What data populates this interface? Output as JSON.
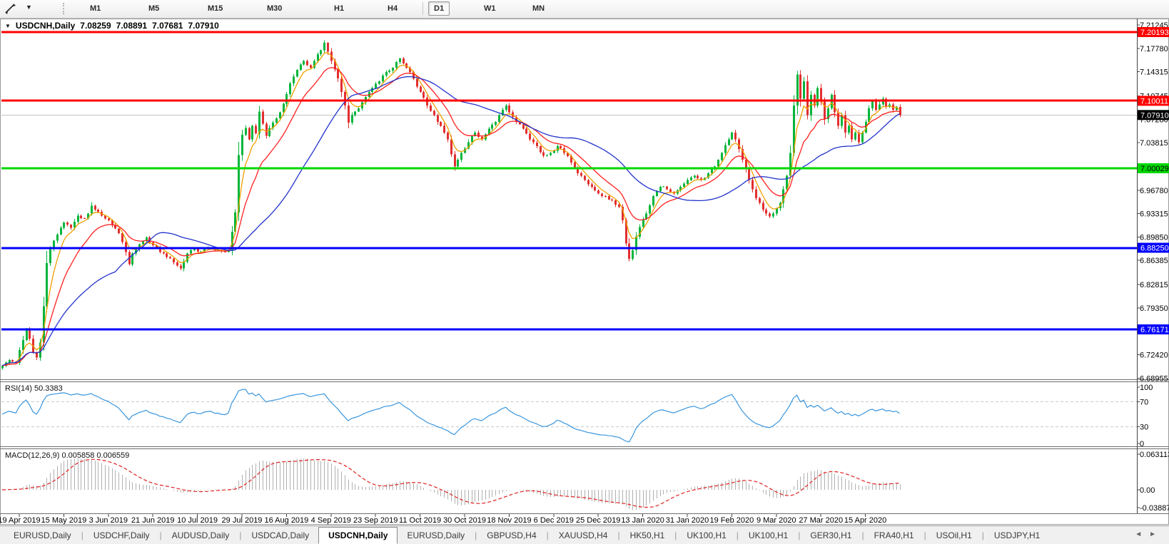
{
  "toolbar": {
    "tool_icon": "cursor-crosshair-icon",
    "dropdown_glyph": "▼",
    "timeframes": [
      "M1",
      "M5",
      "M15",
      "M30",
      "H1",
      "H4",
      "D1",
      "W1",
      "MN"
    ],
    "active_timeframe": "D1"
  },
  "title": {
    "collapse_arrow": "▼",
    "symbol": "USDCNH,Daily",
    "open": "7.08259",
    "high": "7.08891",
    "low": "7.07681",
    "close": "7.07910"
  },
  "price_axis": {
    "ticks": [
      "7.21245",
      "7.17780",
      "7.14315",
      "7.10745",
      "7.07280",
      "7.03815",
      "7.00350",
      "6.96780",
      "6.93315",
      "6.89850",
      "6.86385",
      "6.82815",
      "6.79350",
      "6.75885",
      "6.72420",
      "6.68955"
    ]
  },
  "hlines": [
    {
      "price": 7.20193,
      "label": "7.20193",
      "color": "#ff0000",
      "box_bg": "#ff0000",
      "box_fg": "#ffffff"
    },
    {
      "price": 7.10011,
      "label": "7.10011",
      "color": "#ff0000",
      "box_bg": "#ff0000",
      "box_fg": "#ffffff"
    },
    {
      "price": 7.00029,
      "label": "7.00029",
      "color": "#00d800",
      "box_bg": "#00d800",
      "box_fg": "#000000"
    },
    {
      "price": 6.8825,
      "label": "6.88250",
      "color": "#0000ff",
      "box_bg": "#0000ff",
      "box_fg": "#ffffff"
    },
    {
      "price": 6.76171,
      "label": "6.76171",
      "color": "#0000ff",
      "box_bg": "#0000ff",
      "box_fg": "#ffffff"
    }
  ],
  "current_price": {
    "price": 7.0791,
    "label": "7.07910",
    "line_color": "#c4c4c4",
    "box_bg": "#000000",
    "box_fg": "#ffffff"
  },
  "chart_data": {
    "type": "candlestick",
    "symbol": "USDCNH",
    "timeframe": "Daily",
    "title": "USDCNH,Daily 7.08259 7.08891 7.07681 7.07910",
    "x_dates": [
      "19 Apr 2019",
      "15 May 2019",
      "3 Jun 2019",
      "21 Jun 2019",
      "10 Jul 2019",
      "29 Jul 2019",
      "16 Aug 2019",
      "4 Sep 2019",
      "23 Sep 2019",
      "11 Oct 2019",
      "30 Oct 2019",
      "18 Nov 2019",
      "6 Dec 2019",
      "25 Dec 2019",
      "13 Jan 2020",
      "31 Jan 2020",
      "19 Feb 2020",
      "9 Mar 2020",
      "27 Mar 2020",
      "15 Apr 2020"
    ],
    "candle_count": 263,
    "ylim": [
      6.6877,
      7.221
    ],
    "close_keyframes": [
      [
        0,
        6.708
      ],
      [
        2,
        6.716
      ],
      [
        4,
        6.712
      ],
      [
        6,
        6.746
      ],
      [
        7,
        6.76
      ],
      [
        8,
        6.748
      ],
      [
        9,
        6.728
      ],
      [
        10,
        6.72
      ],
      [
        11,
        6.742
      ],
      [
        12,
        6.796
      ],
      [
        13,
        6.86
      ],
      [
        14,
        6.882
      ],
      [
        16,
        6.902
      ],
      [
        18,
        6.92
      ],
      [
        20,
        6.912
      ],
      [
        22,
        6.93
      ],
      [
        24,
        6.926
      ],
      [
        26,
        6.945
      ],
      [
        28,
        6.936
      ],
      [
        30,
        6.926
      ],
      [
        32,
        6.916
      ],
      [
        34,
        6.904
      ],
      [
        36,
        6.876
      ],
      [
        37,
        6.858
      ],
      [
        38,
        6.874
      ],
      [
        40,
        6.888
      ],
      [
        42,
        6.898
      ],
      [
        44,
        6.886
      ],
      [
        46,
        6.876
      ],
      [
        48,
        6.869
      ],
      [
        50,
        6.861
      ],
      [
        52,
        6.852
      ],
      [
        54,
        6.874
      ],
      [
        56,
        6.881
      ],
      [
        58,
        6.877
      ],
      [
        60,
        6.883
      ],
      [
        62,
        6.879
      ],
      [
        64,
        6.877
      ],
      [
        66,
        6.879
      ],
      [
        68,
        6.935
      ],
      [
        69,
        7.02
      ],
      [
        70,
        7.05
      ],
      [
        71,
        7.06
      ],
      [
        72,
        7.043
      ],
      [
        73,
        7.063
      ],
      [
        74,
        7.052
      ],
      [
        75,
        7.084
      ],
      [
        76,
        7.066
      ],
      [
        77,
        7.048
      ],
      [
        78,
        7.06
      ],
      [
        80,
        7.074
      ],
      [
        82,
        7.096
      ],
      [
        84,
        7.126
      ],
      [
        86,
        7.146
      ],
      [
        88,
        7.159
      ],
      [
        90,
        7.149
      ],
      [
        92,
        7.169
      ],
      [
        94,
        7.186
      ],
      [
        95,
        7.173
      ],
      [
        96,
        7.159
      ],
      [
        98,
        7.133
      ],
      [
        99,
        7.113
      ],
      [
        100,
        7.093
      ],
      [
        101,
        7.068
      ],
      [
        102,
        7.079
      ],
      [
        104,
        7.089
      ],
      [
        106,
        7.106
      ],
      [
        108,
        7.119
      ],
      [
        110,
        7.129
      ],
      [
        112,
        7.143
      ],
      [
        114,
        7.149
      ],
      [
        116,
        7.163
      ],
      [
        118,
        7.149
      ],
      [
        120,
        7.133
      ],
      [
        122,
        7.113
      ],
      [
        124,
        7.093
      ],
      [
        126,
        7.079
      ],
      [
        128,
        7.063
      ],
      [
        130,
        7.043
      ],
      [
        132,
        7.003
      ],
      [
        133,
        7.013
      ],
      [
        134,
        7.023
      ],
      [
        136,
        7.039
      ],
      [
        138,
        7.053
      ],
      [
        140,
        7.043
      ],
      [
        142,
        7.059
      ],
      [
        144,
        7.069
      ],
      [
        146,
        7.087
      ],
      [
        147,
        7.093
      ],
      [
        148,
        7.083
      ],
      [
        150,
        7.069
      ],
      [
        152,
        7.059
      ],
      [
        154,
        7.043
      ],
      [
        156,
        7.033
      ],
      [
        158,
        7.019
      ],
      [
        160,
        7.023
      ],
      [
        162,
        7.033
      ],
      [
        164,
        7.023
      ],
      [
        166,
        7.009
      ],
      [
        168,
        6.993
      ],
      [
        170,
        6.983
      ],
      [
        172,
        6.973
      ],
      [
        174,
        6.963
      ],
      [
        176,
        6.959
      ],
      [
        178,
        6.953
      ],
      [
        180,
        6.943
      ],
      [
        181,
        6.923
      ],
      [
        182,
        6.889
      ],
      [
        183,
        6.866
      ],
      [
        184,
        6.879
      ],
      [
        185,
        6.899
      ],
      [
        186,
        6.913
      ],
      [
        187,
        6.925
      ],
      [
        188,
        6.933
      ],
      [
        190,
        6.959
      ],
      [
        192,
        6.973
      ],
      [
        194,
        6.969
      ],
      [
        196,
        6.963
      ],
      [
        198,
        6.973
      ],
      [
        200,
        6.983
      ],
      [
        202,
        6.989
      ],
      [
        204,
        6.983
      ],
      [
        206,
        6.993
      ],
      [
        208,
        7.003
      ],
      [
        210,
        7.023
      ],
      [
        212,
        7.043
      ],
      [
        213,
        7.053
      ],
      [
        214,
        7.043
      ],
      [
        215,
        7.029
      ],
      [
        216,
        7.013
      ],
      [
        217,
        6.999
      ],
      [
        218,
        6.983
      ],
      [
        219,
        6.969
      ],
      [
        220,
        6.956
      ],
      [
        221,
        6.949
      ],
      [
        222,
        6.939
      ],
      [
        223,
        6.933
      ],
      [
        224,
        6.929
      ],
      [
        225,
        6.933
      ],
      [
        226,
        6.941
      ],
      [
        227,
        6.949
      ],
      [
        228,
        6.969
      ],
      [
        229,
        6.989
      ],
      [
        230,
        7.023
      ],
      [
        231,
        7.093
      ],
      [
        232,
        7.139
      ],
      [
        233,
        7.103
      ],
      [
        234,
        7.129
      ],
      [
        235,
        7.079
      ],
      [
        236,
        7.109
      ],
      [
        237,
        7.093
      ],
      [
        238,
        7.119
      ],
      [
        239,
        7.099
      ],
      [
        240,
        7.073
      ],
      [
        241,
        7.089
      ],
      [
        242,
        7.109
      ],
      [
        243,
        7.083
      ],
      [
        244,
        7.063
      ],
      [
        245,
        7.079
      ],
      [
        246,
        7.053
      ],
      [
        247,
        7.063
      ],
      [
        248,
        7.043
      ],
      [
        249,
        7.053
      ],
      [
        250,
        7.039
      ],
      [
        251,
        7.053
      ],
      [
        252,
        7.069
      ],
      [
        253,
        7.089
      ],
      [
        254,
        7.099
      ],
      [
        255,
        7.087
      ],
      [
        256,
        7.095
      ],
      [
        257,
        7.103
      ],
      [
        258,
        7.091
      ],
      [
        259,
        7.095
      ],
      [
        260,
        7.087
      ],
      [
        261,
        7.091
      ],
      [
        262,
        7.079
      ]
    ],
    "moving_averages": [
      {
        "name": "fast",
        "period": 5,
        "type": "ema",
        "color": "#f0a000"
      },
      {
        "name": "medium",
        "period": 13,
        "type": "ema",
        "color": "#ff2020"
      },
      {
        "name": "slow",
        "period": 34,
        "type": "sma",
        "color": "#2233cc"
      }
    ],
    "indicators": {
      "rsi": {
        "label": "RSI(14) 50.3383",
        "period": 14,
        "value": 50.3383,
        "levels": [
          "100",
          "70",
          "30",
          "0"
        ],
        "dashed_levels": [
          70,
          30
        ],
        "color": "#3a96dd"
      },
      "macd": {
        "label": "MACD(12,26,9) 0.005858 0.006559",
        "fast": 12,
        "slow": 26,
        "signal": 9,
        "macd_value": 0.005858,
        "signal_value": 0.006559,
        "axis_max": "0.063113",
        "axis_zero": "0.00",
        "axis_min": "-0.038872",
        "hist_color": "#b0b0b0",
        "signal_color": "#e02020"
      }
    }
  },
  "colors": {
    "bull": "#00b53a",
    "bear": "#e22f2f",
    "axis_text": "#000000",
    "panel_border": "#6e6e6e"
  },
  "tabs": {
    "items": [
      "EURUSD,Daily",
      "USDCHF,Daily",
      "AUDUSD,Daily",
      "USDCAD,Daily",
      "USDCNH,Daily",
      "EURUSD,Daily",
      "GBPUSD,H4",
      "XAUUSD,H4",
      "HK50,H1",
      "UK100,H1",
      "UK100,H1",
      "GER30,H1",
      "FRA40,H1",
      "USOil,H1",
      "USDJPY,H1"
    ],
    "active_index": 4,
    "scroll_left": "◄",
    "scroll_right": "►"
  }
}
